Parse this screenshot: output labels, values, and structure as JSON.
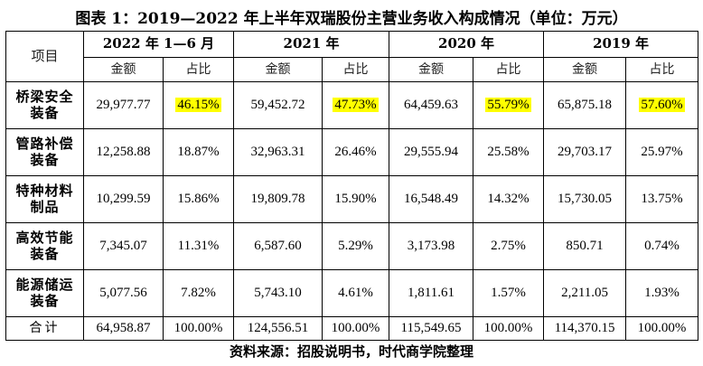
{
  "title": "图表 1：2019—2022 年上半年双瑞股份主营业务收入构成情况（单位：万元）",
  "header": {
    "item_label": "项目",
    "years": [
      "2022 年 1—6 月",
      "2021 年",
      "2020 年",
      "2019 年"
    ],
    "amount_label": "金额",
    "share_label": "占比"
  },
  "rows": [
    {
      "name_line1": "桥梁安全",
      "name_line2": "装备",
      "cells": [
        [
          "29,977.77",
          "46.15%"
        ],
        [
          "59,452.72",
          "47.73%"
        ],
        [
          "64,459.63",
          "55.79%"
        ],
        [
          "65,875.18",
          "57.60%"
        ]
      ]
    },
    {
      "name_line1": "管路补偿",
      "name_line2": "装备",
      "cells": [
        [
          "12,258.88",
          "18.87%"
        ],
        [
          "32,963.31",
          "26.46%"
        ],
        [
          "29,555.94",
          "25.58%"
        ],
        [
          "29,703.17",
          "25.97%"
        ]
      ]
    },
    {
      "name_line1": "特种材料",
      "name_line2": "制品",
      "cells": [
        [
          "10,299.59",
          "15.86%"
        ],
        [
          "19,809.78",
          "15.90%"
        ],
        [
          "16,548.49",
          "14.32%"
        ],
        [
          "15,730.05",
          "13.75%"
        ]
      ]
    },
    {
      "name_line1": "高效节能",
      "name_line2": "装备",
      "cells": [
        [
          "7,345.07",
          "11.31%"
        ],
        [
          "6,587.60",
          "5.29%"
        ],
        [
          "3,173.98",
          "2.75%"
        ],
        [
          "850.71",
          "0.74%"
        ]
      ]
    },
    {
      "name_line1": "能源储运",
      "name_line2": "装备",
      "cells": [
        [
          "5,077.56",
          "7.82%"
        ],
        [
          "5,743.10",
          "4.61%"
        ],
        [
          "1,811.61",
          "1.57%"
        ],
        [
          "2,211.05",
          "1.93%"
        ]
      ]
    }
  ],
  "total": {
    "label": "合计",
    "cells": [
      [
        "64,958.87",
        "100.00%"
      ],
      [
        "124,556.51",
        "100.00%"
      ],
      [
        "115,549.65",
        "100.00%"
      ],
      [
        "114,370.15",
        "100.00%"
      ]
    ]
  },
  "highlight_color": "#ffff00",
  "source": "资料来源：招股说明书，时代商学院整理"
}
